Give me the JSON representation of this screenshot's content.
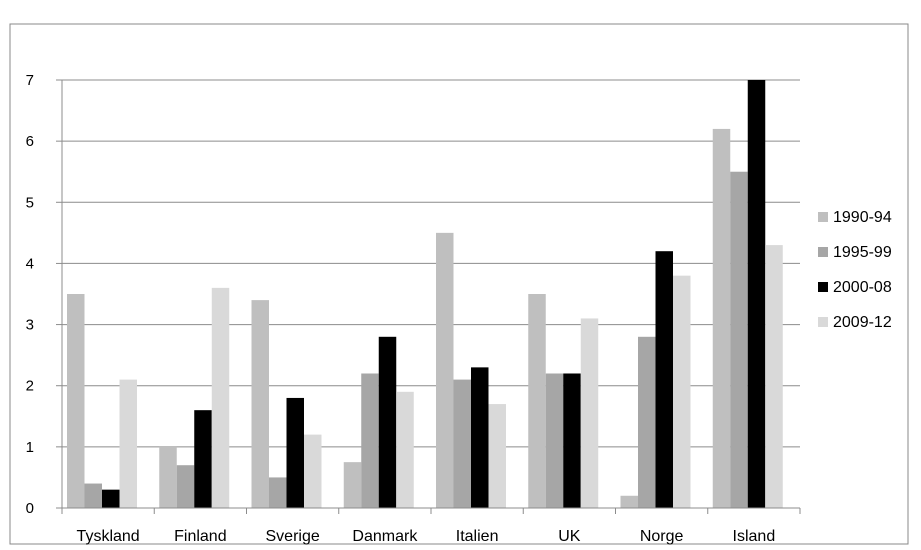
{
  "chart_data": {
    "type": "bar",
    "title": "",
    "xlabel": "",
    "ylabel": "",
    "ylim": [
      0,
      7
    ],
    "yticks": [
      0,
      1,
      2,
      3,
      4,
      5,
      6,
      7
    ],
    "grid": true,
    "legend_position": "right",
    "categories": [
      "Tyskland",
      "Finland",
      "Sverige",
      "Danmark",
      "Italien",
      "UK",
      "Norge",
      "Island"
    ],
    "series": [
      {
        "name": "1990-94",
        "color": "#bfbfbf",
        "values": [
          3.5,
          1.0,
          3.4,
          0.75,
          4.5,
          3.5,
          0.2,
          6.2
        ]
      },
      {
        "name": "1995-99",
        "color": "#a6a6a6",
        "values": [
          0.4,
          0.7,
          0.5,
          2.2,
          2.1,
          2.2,
          2.8,
          5.5
        ]
      },
      {
        "name": "2000-08",
        "color": "#000000",
        "values": [
          0.3,
          1.6,
          1.8,
          2.8,
          2.3,
          2.2,
          4.2,
          7.0
        ]
      },
      {
        "name": "2009-12",
        "color": "#d9d9d9",
        "values": [
          2.1,
          3.6,
          1.2,
          1.9,
          1.7,
          3.1,
          3.8,
          4.3
        ]
      }
    ]
  }
}
